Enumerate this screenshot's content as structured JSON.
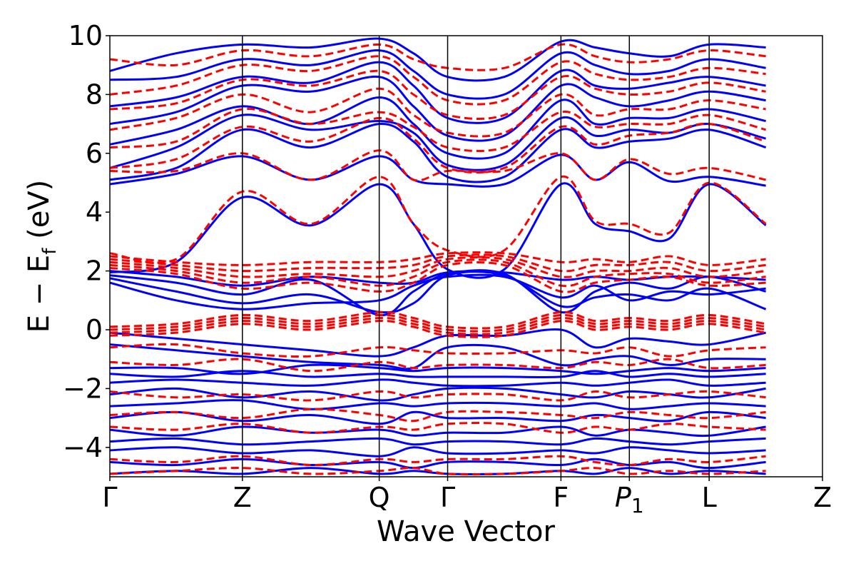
{
  "chart_data": {
    "type": "line",
    "xlabel": "Wave Vector",
    "ylabel": {
      "base": "E − E",
      "sub": "f",
      "unit": " (eV)"
    },
    "ylim": [
      -5,
      10
    ],
    "yticks": [
      -4,
      -2,
      0,
      2,
      4,
      6,
      8,
      10
    ],
    "ytick_labels": [
      "−4",
      "−2",
      "0",
      "2",
      "4",
      "6",
      "8",
      "10"
    ],
    "xlim": [
      0,
      1.0
    ],
    "kpoints": [
      {
        "label": "Γ",
        "italic": false,
        "sub": "",
        "x": 0.0
      },
      {
        "label": "Z",
        "italic": false,
        "sub": "",
        "x": 0.186
      },
      {
        "label": "Q",
        "italic": false,
        "sub": "",
        "x": 0.378
      },
      {
        "label": "Γ",
        "italic": false,
        "sub": "",
        "x": 0.474
      },
      {
        "label": "F",
        "italic": false,
        "sub": "",
        "x": 0.633
      },
      {
        "label": "P",
        "italic": true,
        "sub": "1",
        "x": 0.729
      },
      {
        "label": "L",
        "italic": false,
        "sub": "",
        "x": 0.841
      },
      {
        "label": "Z",
        "italic": false,
        "sub": "",
        "x": 1.0
      }
    ],
    "grid": false,
    "series": [
      {
        "style": "solid",
        "color": "#0000ff",
        "bands": [
          [
            1.95,
            2.3,
            4.5,
            3.55,
            4.95,
            3.6,
            2.05,
            2.05,
            4.95,
            3.6,
            3.35,
            3.1,
            4.95,
            3.55
          ],
          [
            4.95,
            5.3,
            5.9,
            5.1,
            5.9,
            5.1,
            4.95,
            4.95,
            5.95,
            5.1,
            5.7,
            5.05,
            5.2,
            4.9
          ],
          [
            5.1,
            5.5,
            6.8,
            6.2,
            7.0,
            6.4,
            5.2,
            5.2,
            6.8,
            6.2,
            6.4,
            6.5,
            6.8,
            6.2
          ],
          [
            5.5,
            6.2,
            7.3,
            6.8,
            7.1,
            6.7,
            5.6,
            5.6,
            7.2,
            6.6,
            6.8,
            6.7,
            7.0,
            6.5
          ],
          [
            6.3,
            6.8,
            7.6,
            7.0,
            7.9,
            7.0,
            6.0,
            6.0,
            7.8,
            7.0,
            7.2,
            7.2,
            7.5,
            7.1
          ],
          [
            7.0,
            7.4,
            8.3,
            8.1,
            8.6,
            7.6,
            6.6,
            6.6,
            8.3,
            7.9,
            7.6,
            7.8,
            8.1,
            7.8
          ],
          [
            7.6,
            7.9,
            8.6,
            8.4,
            9.1,
            8.3,
            7.2,
            7.2,
            8.8,
            8.3,
            8.2,
            8.4,
            8.6,
            8.3
          ],
          [
            8.5,
            8.6,
            9.2,
            9.0,
            9.5,
            8.8,
            8.0,
            8.0,
            9.4,
            9.0,
            8.7,
            8.8,
            9.2,
            8.9
          ],
          [
            8.8,
            9.4,
            9.7,
            9.6,
            9.9,
            9.4,
            8.6,
            8.6,
            9.8,
            9.6,
            9.4,
            9.3,
            9.7,
            9.6
          ],
          [
            1.85,
            1.6,
            1.2,
            1.7,
            0.5,
            1.3,
            1.9,
            1.9,
            0.6,
            1.3,
            1.6,
            1.4,
            1.8,
            1.3
          ],
          [
            1.75,
            1.3,
            0.9,
            1.2,
            0.6,
            0.9,
            1.85,
            1.85,
            0.8,
            1.1,
            1.2,
            1.0,
            1.4,
            0.7
          ],
          [
            1.6,
            1.0,
            0.7,
            0.9,
            1.0,
            1.5,
            1.8,
            1.8,
            1.1,
            1.5,
            1.0,
            1.3,
            1.2,
            1.4
          ],
          [
            2.0,
            1.8,
            1.5,
            1.8,
            1.6,
            1.6,
            1.95,
            1.95,
            1.7,
            1.8,
            1.7,
            1.8,
            1.8,
            1.7
          ],
          [
            -0.1,
            -0.3,
            -0.5,
            -0.7,
            -0.9,
            -0.6,
            -0.2,
            -0.2,
            0.0,
            -0.6,
            -0.3,
            -0.4,
            -0.5,
            -0.1
          ],
          [
            -0.5,
            -0.7,
            -0.9,
            -1.1,
            -1.2,
            -1.3,
            -0.6,
            -0.6,
            -1.2,
            -1.0,
            -0.9,
            -1.2,
            -1.0,
            -1.0
          ],
          [
            -1.3,
            -1.3,
            -1.5,
            -1.2,
            -1.3,
            -1.4,
            -1.3,
            -1.3,
            -1.4,
            -1.5,
            -1.4,
            -1.3,
            -1.4,
            -1.3
          ],
          [
            -1.5,
            -1.6,
            -1.4,
            -1.6,
            -1.5,
            -1.6,
            -1.6,
            -1.6,
            -1.6,
            -1.4,
            -1.6,
            -1.5,
            -1.6,
            -1.5
          ],
          [
            -1.8,
            -1.7,
            -1.8,
            -1.9,
            -1.7,
            -1.8,
            -1.9,
            -1.9,
            -1.8,
            -1.9,
            -1.8,
            -1.7,
            -1.9,
            -1.8
          ],
          [
            -2.2,
            -2.0,
            -2.3,
            -2.1,
            -2.4,
            -2.2,
            -2.0,
            -2.0,
            -2.2,
            -2.3,
            -2.1,
            -2.2,
            -2.3,
            -2.0
          ],
          [
            -2.6,
            -2.5,
            -2.4,
            -2.7,
            -2.5,
            -2.6,
            -2.5,
            -2.5,
            -2.6,
            -2.5,
            -2.7,
            -2.6,
            -2.5,
            -2.6
          ],
          [
            -3.0,
            -2.8,
            -3.1,
            -2.9,
            -3.2,
            -2.8,
            -3.0,
            -3.0,
            -3.1,
            -2.9,
            -3.0,
            -3.1,
            -2.8,
            -3.0
          ],
          [
            -3.4,
            -3.6,
            -3.3,
            -3.5,
            -3.4,
            -3.6,
            -3.5,
            -3.5,
            -3.3,
            -3.6,
            -3.4,
            -3.5,
            -3.6,
            -3.3
          ],
          [
            -3.8,
            -3.7,
            -3.9,
            -3.8,
            -3.7,
            -3.9,
            -3.8,
            -3.8,
            -3.9,
            -3.7,
            -3.8,
            -3.9,
            -3.8,
            -3.7
          ],
          [
            -4.1,
            -4.0,
            -4.2,
            -4.1,
            -4.3,
            -4.0,
            -4.2,
            -4.2,
            -4.1,
            -4.2,
            -4.0,
            -4.1,
            -4.2,
            -4.1
          ],
          [
            -4.5,
            -4.6,
            -4.4,
            -4.6,
            -4.5,
            -4.7,
            -4.5,
            -4.5,
            -4.6,
            -4.4,
            -4.6,
            -4.5,
            -4.7,
            -4.5
          ],
          [
            -4.9,
            -4.8,
            -4.9,
            -4.7,
            -4.9,
            -4.8,
            -4.9,
            -4.9,
            -4.8,
            -4.9,
            -4.7,
            -4.9,
            -4.8,
            -4.9
          ]
        ]
      },
      {
        "style": "dashed",
        "color": "#ff0000",
        "bands": [
          [
            2.6,
            2.4,
            4.7,
            3.6,
            5.2,
            3.6,
            2.7,
            2.7,
            5.2,
            3.7,
            3.6,
            3.3,
            5.0,
            3.6
          ],
          [
            5.4,
            5.4,
            6.0,
            5.1,
            6.1,
            5.1,
            5.4,
            5.4,
            6.0,
            5.1,
            5.8,
            5.3,
            5.5,
            5.1
          ],
          [
            5.5,
            5.8,
            6.9,
            6.4,
            7.2,
            6.5,
            5.5,
            5.5,
            6.9,
            6.3,
            6.6,
            6.7,
            7.0,
            6.4
          ],
          [
            6.2,
            6.4,
            7.5,
            7.0,
            7.4,
            6.9,
            6.2,
            6.2,
            7.4,
            6.9,
            7.0,
            7.0,
            7.3,
            6.8
          ],
          [
            6.8,
            7.2,
            8.0,
            7.4,
            8.2,
            7.3,
            6.7,
            6.7,
            8.0,
            7.3,
            7.5,
            7.5,
            7.8,
            7.5
          ],
          [
            7.5,
            7.7,
            8.5,
            8.3,
            8.8,
            8.0,
            7.3,
            7.3,
            8.6,
            8.2,
            8.0,
            8.1,
            8.4,
            8.1
          ],
          [
            8.0,
            8.3,
            9.0,
            8.8,
            9.3,
            8.6,
            7.8,
            7.8,
            9.1,
            8.7,
            8.5,
            8.6,
            8.9,
            8.7
          ],
          [
            9.2,
            9.0,
            9.5,
            9.3,
            9.7,
            9.2,
            8.9,
            8.9,
            9.7,
            9.3,
            9.1,
            9.2,
            9.5,
            9.3
          ],
          [
            2.5,
            2.3,
            2.2,
            2.3,
            2.3,
            2.4,
            2.6,
            2.6,
            2.3,
            2.4,
            2.3,
            2.5,
            2.2,
            2.4
          ],
          [
            2.4,
            2.2,
            2.0,
            2.1,
            2.1,
            2.2,
            2.5,
            2.5,
            2.0,
            2.2,
            2.2,
            2.3,
            2.0,
            2.2
          ],
          [
            2.3,
            2.1,
            1.8,
            1.9,
            1.8,
            2.0,
            2.4,
            2.4,
            1.8,
            2.0,
            2.0,
            2.1,
            1.8,
            2.0
          ],
          [
            2.2,
            2.0,
            1.6,
            1.8,
            1.5,
            1.8,
            2.3,
            2.3,
            1.5,
            1.8,
            1.9,
            1.9,
            1.6,
            1.8
          ],
          [
            2.1,
            1.9,
            1.4,
            1.6,
            1.3,
            1.6,
            2.2,
            2.2,
            1.3,
            1.6,
            1.7,
            1.8,
            1.5,
            1.6
          ],
          [
            0.1,
            0.2,
            0.5,
            0.3,
            0.6,
            0.4,
            0.1,
            0.1,
            0.6,
            0.3,
            0.4,
            0.3,
            0.5,
            0.2
          ],
          [
            0.0,
            0.1,
            0.4,
            0.2,
            0.5,
            0.3,
            0.0,
            0.0,
            0.5,
            0.2,
            0.3,
            0.2,
            0.4,
            0.1
          ],
          [
            -0.1,
            0.0,
            0.3,
            0.1,
            0.4,
            0.2,
            -0.1,
            -0.1,
            0.4,
            0.1,
            0.2,
            0.1,
            0.3,
            0.0
          ],
          [
            -0.2,
            -0.1,
            0.2,
            0.0,
            0.3,
            0.1,
            -0.2,
            -0.2,
            0.3,
            0.0,
            0.1,
            0.0,
            0.2,
            -0.1
          ],
          [
            -0.6,
            -0.5,
            -0.8,
            -0.9,
            -0.6,
            -0.7,
            -0.8,
            -0.8,
            -0.7,
            -0.8,
            -0.6,
            -0.9,
            -0.7,
            -0.6
          ],
          [
            -1.1,
            -1.2,
            -1.0,
            -1.4,
            -1.1,
            -1.3,
            -1.2,
            -1.2,
            -1.3,
            -1.1,
            -1.2,
            -1.0,
            -1.3,
            -1.2
          ],
          [
            -2.1,
            -2.3,
            -2.2,
            -2.4,
            -2.1,
            -2.3,
            -2.2,
            -2.2,
            -2.4,
            -2.1,
            -2.3,
            -2.2,
            -2.1,
            -2.3
          ],
          [
            -2.9,
            -2.8,
            -3.0,
            -2.7,
            -2.9,
            -3.1,
            -2.8,
            -2.8,
            -2.9,
            -3.0,
            -2.8,
            -2.9,
            -3.0,
            -2.8
          ],
          [
            -3.3,
            -3.4,
            -3.2,
            -3.5,
            -3.3,
            -3.4,
            -3.2,
            -3.2,
            -3.5,
            -3.3,
            -3.4,
            -3.2,
            -3.3,
            -3.4
          ],
          [
            -4.4,
            -4.5,
            -4.3,
            -4.6,
            -4.4,
            -4.5,
            -4.4,
            -4.4,
            -4.3,
            -4.5,
            -4.6,
            -4.4,
            -4.5,
            -4.3
          ],
          [
            -4.9,
            -4.8,
            -4.7,
            -4.9,
            -4.8,
            -4.7,
            -4.9,
            -4.9,
            -4.8,
            -4.7,
            -4.9,
            -4.8,
            -4.9,
            -4.8
          ]
        ]
      }
    ]
  }
}
